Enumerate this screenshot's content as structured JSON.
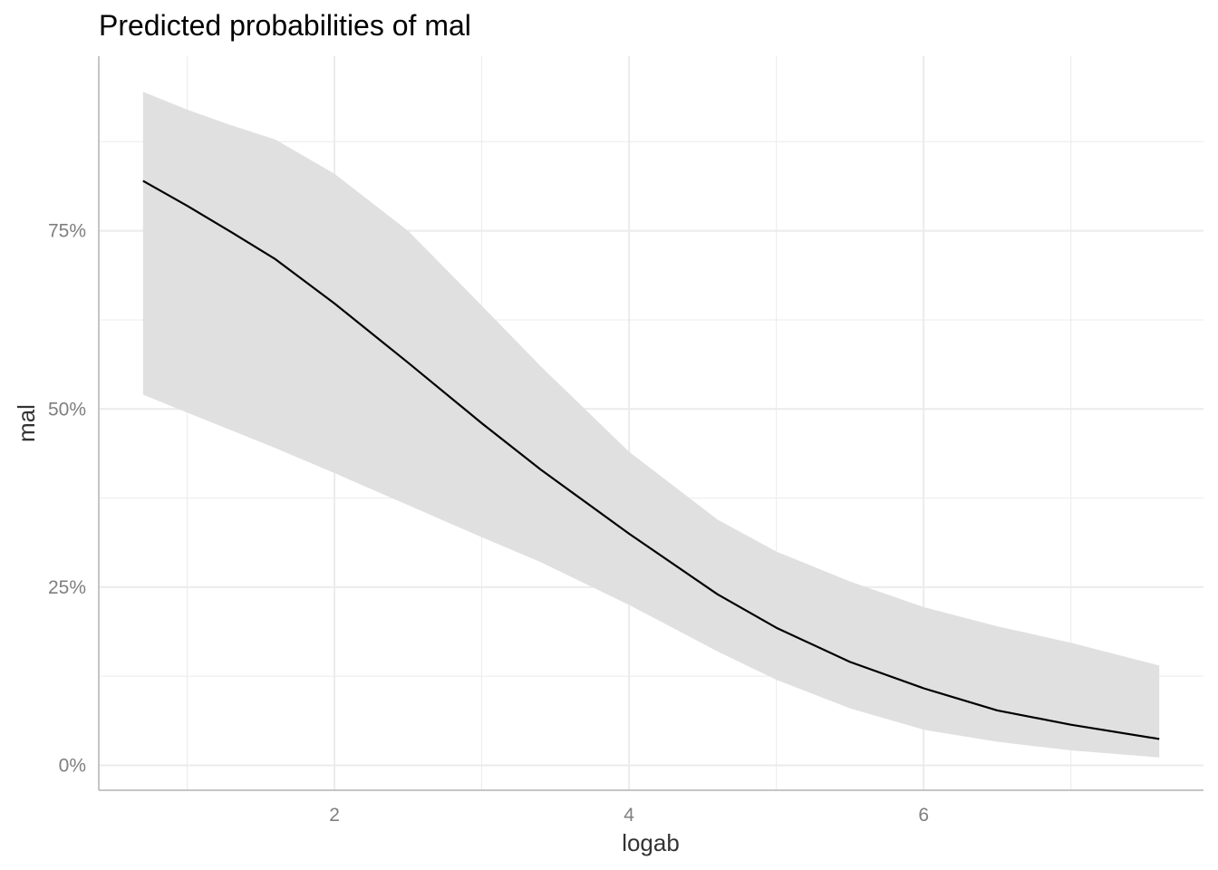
{
  "chart_data": {
    "type": "line",
    "title": "Predicted probabilities of mal",
    "xlabel": "logab",
    "ylabel": "mal",
    "xlim": [
      0.4,
      7.9
    ],
    "ylim": [
      -0.035,
      0.995
    ],
    "x_ticks": [
      2,
      4,
      6
    ],
    "x_tick_labels": [
      "2",
      "4",
      "6"
    ],
    "y_ticks": [
      0,
      0.25,
      0.5,
      0.75
    ],
    "y_tick_labels": [
      "0%",
      "25%",
      "50%",
      "75%"
    ],
    "grid": true,
    "colors": {
      "line": "#000000",
      "ribbon": "#e0e0e0",
      "grid": "#ebebeb",
      "axis": "#b3b3b3"
    },
    "series": [
      {
        "x": [
          0.7,
          1.0,
          1.3,
          1.6,
          2.0,
          2.5,
          3.0,
          3.4,
          4.0,
          4.6,
          5.0,
          5.5,
          6.0,
          6.5,
          7.0,
          7.6
        ],
        "y": [
          0.82,
          0.785,
          0.748,
          0.71,
          0.648,
          0.565,
          0.48,
          0.415,
          0.325,
          0.24,
          0.193,
          0.145,
          0.108,
          0.077,
          0.057,
          0.037
        ],
        "lower": [
          0.52,
          0.495,
          0.47,
          0.445,
          0.41,
          0.365,
          0.32,
          0.285,
          0.225,
          0.16,
          0.12,
          0.08,
          0.05,
          0.033,
          0.021,
          0.011
        ],
        "upper": [
          0.945,
          0.92,
          0.898,
          0.878,
          0.83,
          0.75,
          0.645,
          0.56,
          0.44,
          0.345,
          0.3,
          0.258,
          0.222,
          0.195,
          0.172,
          0.14
        ]
      }
    ]
  }
}
